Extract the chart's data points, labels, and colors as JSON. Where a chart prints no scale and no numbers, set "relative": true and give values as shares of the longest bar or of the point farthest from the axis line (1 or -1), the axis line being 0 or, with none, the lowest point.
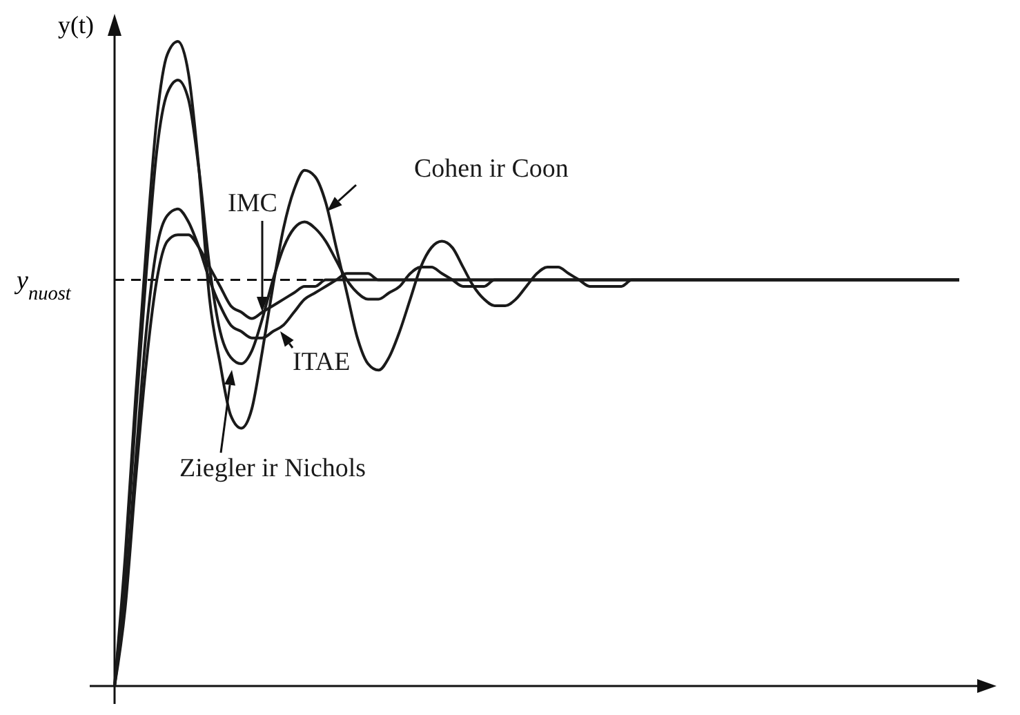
{
  "chart_data": {
    "type": "line",
    "relative": true,
    "ylabel": "y(t)",
    "categories": [
      null,
      null,
      null,
      null,
      null,
      null,
      null,
      null,
      null,
      null,
      null,
      null,
      null,
      null,
      null,
      null,
      null,
      null,
      null,
      null,
      null,
      null,
      null,
      null,
      null,
      null,
      null,
      null,
      null,
      null,
      null,
      null,
      null,
      null,
      null,
      null,
      null,
      null,
      null,
      null,
      null,
      null,
      null,
      null,
      null,
      null,
      null,
      null,
      null,
      null,
      null,
      null,
      null,
      null,
      null,
      null,
      null,
      null,
      null,
      null,
      null,
      null,
      null,
      null,
      null,
      null,
      null,
      null,
      null,
      null,
      null,
      null,
      null,
      null,
      null,
      null,
      null,
      null,
      null,
      null,
      null
    ],
    "series": [
      {
        "name": "Cohen ir Coon",
        "color": "#1a1a1a",
        "values": [
          0,
          0.2,
          0.45,
          0.68,
          0.88,
          0.98,
          1.0,
          0.95,
          0.8,
          0.6,
          0.5,
          0.42,
          0.4,
          0.43,
          0.52,
          0.62,
          0.71,
          0.77,
          0.8,
          0.79,
          0.75,
          0.68,
          0.61,
          0.54,
          0.5,
          0.49,
          0.51,
          0.55,
          0.6,
          0.65,
          0.68,
          0.69,
          0.68,
          0.65,
          0.62,
          0.6,
          0.59,
          0.59,
          0.6,
          0.62,
          0.64,
          0.65,
          0.65,
          0.64,
          0.63,
          0.62,
          0.62,
          0.62,
          0.62,
          0.63,
          0.63,
          0.63,
          0.63,
          0.63,
          0.63,
          0.63,
          0.63,
          0.63,
          0.63,
          0.63,
          0.63,
          0.63,
          0.63,
          0.63,
          0.63,
          0.63,
          0.63,
          0.63,
          0.63,
          0.63,
          0.63,
          0.63,
          0.63,
          0.63,
          0.63,
          0.63,
          0.63,
          0.63,
          0.63,
          0.63,
          0.63
        ]
      },
      {
        "name": "IMC",
        "color": "#1a1a1a",
        "values": [
          0,
          0.12,
          0.32,
          0.5,
          0.63,
          0.69,
          0.7,
          0.7,
          0.68,
          0.65,
          0.62,
          0.59,
          0.58,
          0.57,
          0.58,
          0.59,
          0.6,
          0.61,
          0.62,
          0.62,
          0.63,
          0.63,
          0.63,
          0.63,
          0.63,
          0.63,
          0.63,
          0.63,
          0.63,
          0.63,
          0.63,
          0.63,
          0.63,
          0.63,
          0.63,
          0.63,
          0.63,
          0.63,
          0.63,
          0.63,
          0.63,
          0.63,
          0.63,
          0.63,
          0.63,
          0.63,
          0.63,
          0.63,
          0.63,
          0.63,
          0.63,
          0.63,
          0.63,
          0.63,
          0.63,
          0.63,
          0.63,
          0.63,
          0.63,
          0.63,
          0.63,
          0.63,
          0.63,
          0.63,
          0.63,
          0.63,
          0.63,
          0.63,
          0.63,
          0.63,
          0.63,
          0.63,
          0.63,
          0.63,
          0.63,
          0.63,
          0.63,
          0.63,
          0.63,
          0.63,
          0.63
        ]
      },
      {
        "name": "ITAE",
        "color": "#1a1a1a",
        "values": [
          0,
          0.14,
          0.35,
          0.55,
          0.68,
          0.73,
          0.74,
          0.72,
          0.68,
          0.63,
          0.59,
          0.56,
          0.55,
          0.54,
          0.54,
          0.55,
          0.56,
          0.58,
          0.6,
          0.61,
          0.62,
          0.63,
          0.64,
          0.64,
          0.64,
          0.63,
          0.63,
          0.63,
          0.63,
          0.63,
          0.63,
          0.63,
          0.63,
          0.63,
          0.63,
          0.63,
          0.63,
          0.63,
          0.63,
          0.63,
          0.63,
          0.63,
          0.63,
          0.63,
          0.63,
          0.63,
          0.63,
          0.63,
          0.63,
          0.63,
          0.63,
          0.63,
          0.63,
          0.63,
          0.63,
          0.63,
          0.63,
          0.63,
          0.63,
          0.63,
          0.63,
          0.63,
          0.63,
          0.63,
          0.63,
          0.63,
          0.63,
          0.63,
          0.63,
          0.63,
          0.63,
          0.63,
          0.63,
          0.63,
          0.63,
          0.63,
          0.63,
          0.63,
          0.63,
          0.63,
          0.63
        ]
      },
      {
        "name": "Ziegler ir Nichols",
        "color": "#1a1a1a",
        "values": [
          0,
          0.18,
          0.42,
          0.64,
          0.83,
          0.92,
          0.94,
          0.91,
          0.8,
          0.65,
          0.55,
          0.51,
          0.5,
          0.52,
          0.57,
          0.63,
          0.68,
          0.71,
          0.72,
          0.71,
          0.69,
          0.66,
          0.63,
          0.61,
          0.6,
          0.6,
          0.61,
          0.62,
          0.64,
          0.65,
          0.65,
          0.64,
          0.63,
          0.62,
          0.62,
          0.62,
          0.63,
          0.63,
          0.63,
          0.63,
          0.63,
          0.63,
          0.63,
          0.63,
          0.63,
          0.63,
          0.63,
          0.63,
          0.63,
          0.63,
          0.63,
          0.63,
          0.63,
          0.63,
          0.63,
          0.63,
          0.63,
          0.63,
          0.63,
          0.63,
          0.63,
          0.63,
          0.63,
          0.63,
          0.63,
          0.63,
          0.63,
          0.63,
          0.63,
          0.63,
          0.63,
          0.63,
          0.63,
          0.63,
          0.63,
          0.63,
          0.63,
          0.63,
          0.63,
          0.63,
          0.63
        ]
      }
    ],
    "ref_lines": [
      {
        "axis": "y",
        "value": 0.63,
        "label": "y$_{nuost}$",
        "line_style": "dashed"
      }
    ]
  }
}
